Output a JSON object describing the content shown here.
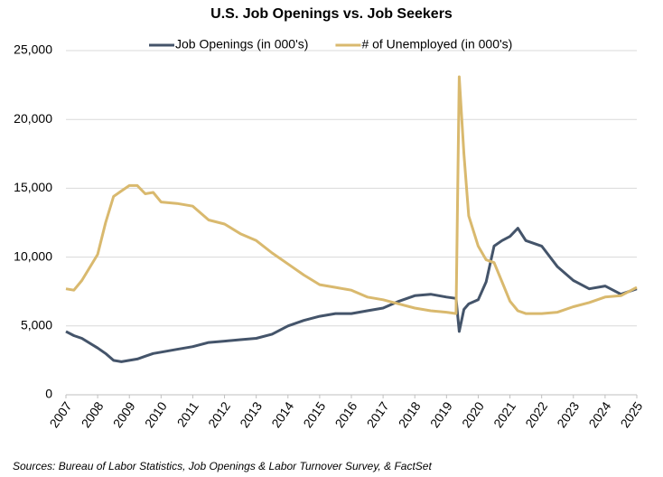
{
  "chart_data": {
    "type": "line",
    "title": "U.S. Job Openings vs. Job Seekers",
    "source": "Sources: Bureau of Labor Statistics, Job Openings & Labor Turnover Survey, & FactSet",
    "x": [
      2007,
      2007.25,
      2007.5,
      2008,
      2008.25,
      2008.5,
      2008.75,
      2009,
      2009.25,
      2009.5,
      2009.75,
      2010,
      2010.5,
      2011,
      2011.5,
      2012,
      2012.5,
      2013,
      2013.5,
      2014,
      2014.5,
      2015,
      2015.5,
      2016,
      2016.5,
      2017,
      2017.5,
      2018,
      2018.5,
      2019,
      2019.3,
      2019.4,
      2019.55,
      2019.7,
      2020,
      2020.25,
      2020.5,
      2020.75,
      2021,
      2021.25,
      2021.5,
      2022,
      2022.5,
      2023,
      2023.5,
      2024,
      2024.5,
      2025
    ],
    "series": [
      {
        "name": "Job Openings (in 000's)",
        "color": "#44546a",
        "values": [
          4600,
          4300,
          4100,
          3400,
          3000,
          2500,
          2400,
          2500,
          2600,
          2800,
          3000,
          3100,
          3300,
          3500,
          3800,
          3900,
          4000,
          4100,
          4400,
          5000,
          5400,
          5700,
          5900,
          5900,
          6100,
          6300,
          6800,
          7200,
          7300,
          7100,
          7000,
          4600,
          6200,
          6600,
          6900,
          8200,
          10800,
          11200,
          11500,
          12100,
          11200,
          10800,
          9300,
          8300,
          7700,
          7900,
          7300,
          7700
        ]
      },
      {
        "name": "# of Unemployed (in 000's)",
        "color": "#d9b96e",
        "values": [
          7700,
          7600,
          8300,
          10200,
          12500,
          14400,
          14800,
          15200,
          15200,
          14600,
          14700,
          14000,
          13900,
          13700,
          12700,
          12400,
          11700,
          11200,
          10300,
          9500,
          8700,
          8000,
          7800,
          7600,
          7100,
          6900,
          6600,
          6300,
          6100,
          6000,
          5900,
          23100,
          17500,
          13000,
          10800,
          9800,
          9600,
          8200,
          6800,
          6100,
          5900,
          5900,
          6000,
          6400,
          6700,
          7100,
          7200,
          7800
        ]
      }
    ],
    "xlim": [
      2007,
      2025
    ],
    "xticks": [
      2007,
      2008,
      2009,
      2010,
      2011,
      2012,
      2013,
      2014,
      2015,
      2016,
      2017,
      2018,
      2019,
      2020,
      2021,
      2022,
      2023,
      2024,
      2025
    ],
    "ylim": [
      0,
      25000
    ],
    "yticks": [
      0,
      {
        "value": 5000,
        "label": "5,000"
      },
      {
        "value": 10000,
        "label": "10,000"
      },
      {
        "value": 15000,
        "label": "15,000"
      },
      {
        "value": 20000,
        "label": "20,000"
      },
      {
        "value": 25000,
        "label": "25,000"
      }
    ],
    "grid": true,
    "legend": "top"
  }
}
